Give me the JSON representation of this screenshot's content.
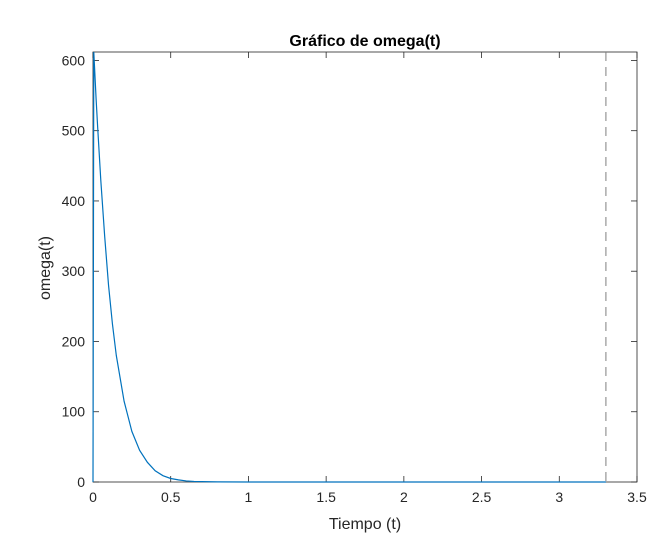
{
  "chart_data": {
    "type": "line",
    "title": "Gráfico de omega(t)",
    "xlabel": "Tiempo (t)",
    "ylabel": "omega(t)",
    "xlim": [
      0,
      3.5
    ],
    "ylim": [
      0,
      612
    ],
    "xticks": [
      0,
      0.5,
      1,
      1.5,
      2,
      2.5,
      3,
      3.5
    ],
    "xtick_labels": [
      "0",
      "0.5",
      "1",
      "1.5",
      "2",
      "2.5",
      "3",
      "3.5"
    ],
    "yticks": [
      0,
      100,
      200,
      300,
      400,
      500,
      600
    ],
    "ytick_labels": [
      "0",
      "100",
      "200",
      "300",
      "400",
      "500",
      "600"
    ],
    "grid": false,
    "legend": "none",
    "series": [
      {
        "color": "#0072bd",
        "x": [
          0,
          0.005,
          0.01,
          0.02,
          0.03,
          0.05,
          0.075,
          0.1,
          0.125,
          0.15,
          0.2,
          0.25,
          0.3,
          0.35,
          0.4,
          0.45,
          0.5,
          0.55,
          0.6,
          0.65,
          0.8,
          1.0,
          1.5,
          2.0,
          2.5,
          3.0,
          3.3
        ],
        "y": [
          0,
          612,
          590,
          545,
          505,
          430,
          350,
          280,
          225,
          180,
          115,
          72,
          45,
          28,
          16,
          9,
          5,
          3,
          1.5,
          0.8,
          0.2,
          0,
          0,
          0,
          0,
          0,
          0
        ]
      }
    ],
    "reference_lines": [
      {
        "orientation": "vertical",
        "x": 3.3,
        "style": "dashed",
        "color": "#7f7f7f"
      }
    ]
  }
}
